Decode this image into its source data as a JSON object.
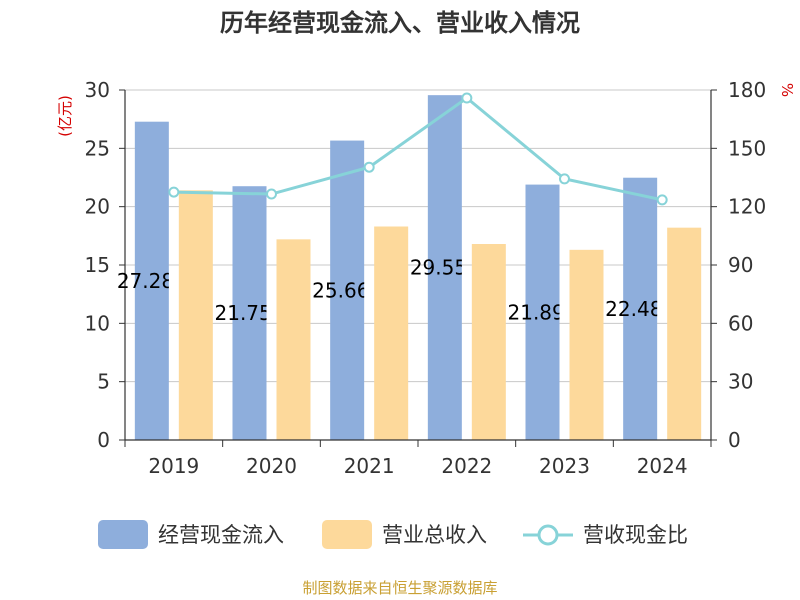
{
  "chart_data": {
    "type": "bar",
    "title": "历年经营现金流入、营业收入情况",
    "categories": [
      "2019",
      "2020",
      "2021",
      "2022",
      "2023",
      "2024"
    ],
    "y_left": {
      "unit_label": "(亿元)",
      "min": 0,
      "max": 30,
      "ticks": [
        0,
        5,
        10,
        15,
        20,
        25,
        30
      ]
    },
    "y_right": {
      "unit_label": "%",
      "min": 0,
      "max": 180,
      "ticks": [
        0,
        30,
        60,
        90,
        120,
        150,
        180
      ]
    },
    "series": [
      {
        "name": "经营现金流入",
        "kind": "bar",
        "axis": "left",
        "values": [
          27.283,
          21.753,
          25.665,
          29.558,
          21.892,
          22.482
        ],
        "value_labels": [
          "27.283",
          "21.753",
          "25.665",
          "29.558",
          "21.892",
          "22.482"
        ]
      },
      {
        "name": "营业总收入",
        "kind": "bar",
        "axis": "left",
        "values": [
          21.4,
          17.2,
          18.3,
          16.8,
          16.3,
          18.2
        ]
      },
      {
        "name": "营收现金比",
        "kind": "line",
        "axis": "right",
        "values": [
          127.5,
          126.5,
          140.3,
          175.9,
          134.3,
          123.5
        ]
      }
    ],
    "grid": true,
    "legend_position": "bottom"
  },
  "colors": {
    "series1": "#8eaedc",
    "series2": "#fdd99b",
    "series3": "#87d3d8",
    "axis_unit": "#d40000",
    "source": "#c9a033",
    "grid": "#c8c8c8",
    "axis": "#333333",
    "title": "#333333"
  },
  "source": "制图数据来自恒生聚源数据库"
}
